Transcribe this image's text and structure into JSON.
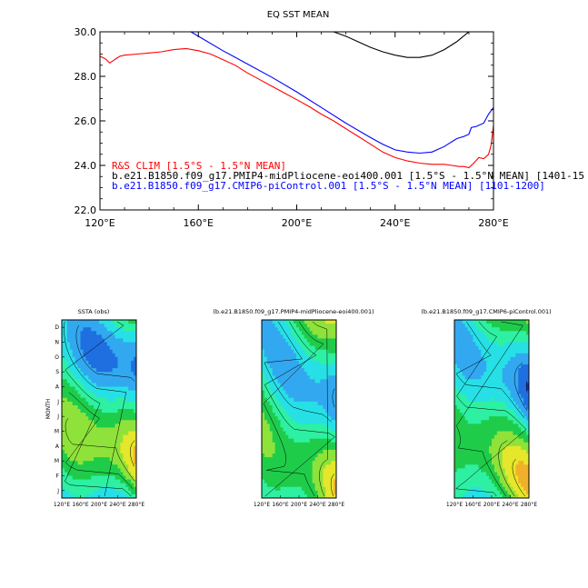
{
  "chart_data": [
    {
      "type": "line",
      "title": "EQ SST MEAN",
      "xlabel": "",
      "ylabel": "",
      "xlim": [
        120,
        280
      ],
      "ylim": [
        22.0,
        30.0
      ],
      "x_ticks": [
        "120°E",
        "160°E",
        "200°E",
        "240°E",
        "280°E"
      ],
      "y_ticks": [
        "30.0",
        "28.0",
        "26.0",
        "24.0",
        "22.0"
      ],
      "series": [
        {
          "name": "R&S CLIM [1.5°S - 1.5°N MEAN]",
          "color": "#ff0000",
          "x": [
            120,
            122,
            124,
            126,
            128,
            130,
            135,
            140,
            145,
            150,
            155,
            160,
            165,
            170,
            175,
            180,
            185,
            190,
            195,
            200,
            205,
            210,
            215,
            220,
            225,
            230,
            235,
            240,
            245,
            250,
            255,
            260,
            263,
            266,
            268,
            270,
            272,
            274,
            276,
            278,
            279,
            280
          ],
          "y": [
            28.9,
            28.8,
            28.6,
            28.75,
            28.9,
            28.95,
            29.0,
            29.05,
            29.1,
            29.2,
            29.25,
            29.15,
            29.0,
            28.75,
            28.5,
            28.15,
            27.85,
            27.55,
            27.25,
            26.95,
            26.65,
            26.3,
            26.0,
            25.65,
            25.3,
            24.95,
            24.6,
            24.35,
            24.2,
            24.1,
            24.05,
            24.05,
            24.0,
            23.95,
            23.95,
            23.9,
            24.1,
            24.35,
            24.3,
            24.5,
            24.9,
            25.8
          ]
        },
        {
          "name": "b.e21.B1850.f09_g17.PMIP4-midPliocene-eoi400.001 [1.5°S - 1.5°N MEAN] [1401-15",
          "color": "#000000",
          "x": [
            215,
            220,
            225,
            230,
            235,
            240,
            245,
            250,
            255,
            260,
            265,
            270
          ],
          "y": [
            30.0,
            29.8,
            29.55,
            29.3,
            29.1,
            28.95,
            28.85,
            28.85,
            28.95,
            29.2,
            29.55,
            30.0
          ]
        },
        {
          "name": "b.e21.B1850.f09_g17.CMIP6-piControl.001 [1.5°S - 1.5°N MEAN] [1101-1200]",
          "color": "#0000ff",
          "x": [
            157,
            160,
            170,
            180,
            190,
            200,
            210,
            220,
            230,
            235,
            240,
            245,
            250,
            255,
            260,
            265,
            268,
            270,
            271,
            273,
            276,
            278,
            280
          ],
          "y": [
            30.0,
            29.8,
            29.15,
            28.55,
            27.95,
            27.3,
            26.6,
            25.9,
            25.25,
            24.95,
            24.7,
            24.6,
            24.55,
            24.6,
            24.85,
            25.2,
            25.3,
            25.4,
            25.7,
            25.75,
            25.9,
            26.3,
            26.6
          ]
        }
      ]
    },
    {
      "type": "heatmap",
      "title": "SSTA (obs)",
      "ylabel": "MONTH",
      "x_ticks": [
        "120°E",
        "160°E",
        "200°E",
        "240°E",
        "280°E"
      ],
      "y_ticks": [
        "J",
        "F",
        "M",
        "A",
        "M",
        "J",
        "J",
        "A",
        "S",
        "O",
        "N",
        "D"
      ]
    },
    {
      "type": "heatmap",
      "title": "(b.e21.B1850.f09_g17.PMIP4-midPliocene-eoi400.001)",
      "x_ticks": [
        "120°E",
        "160°E",
        "200°E",
        "240°E",
        "280°E"
      ]
    },
    {
      "type": "heatmap",
      "title": "(b.e21.B1850.f09_g17.CMIP6-piControl.001)",
      "x_ticks": [
        "120°E",
        "160°E",
        "200°E",
        "240°E",
        "280°E"
      ]
    }
  ],
  "colors": {
    "heat_palette": [
      "#1a2fb0",
      "#1f6fe0",
      "#32a8f0",
      "#27e0e6",
      "#2ef0a2",
      "#1fcc4a",
      "#8fe23a",
      "#e6e62a",
      "#f2b02a",
      "#e87a1e"
    ]
  }
}
